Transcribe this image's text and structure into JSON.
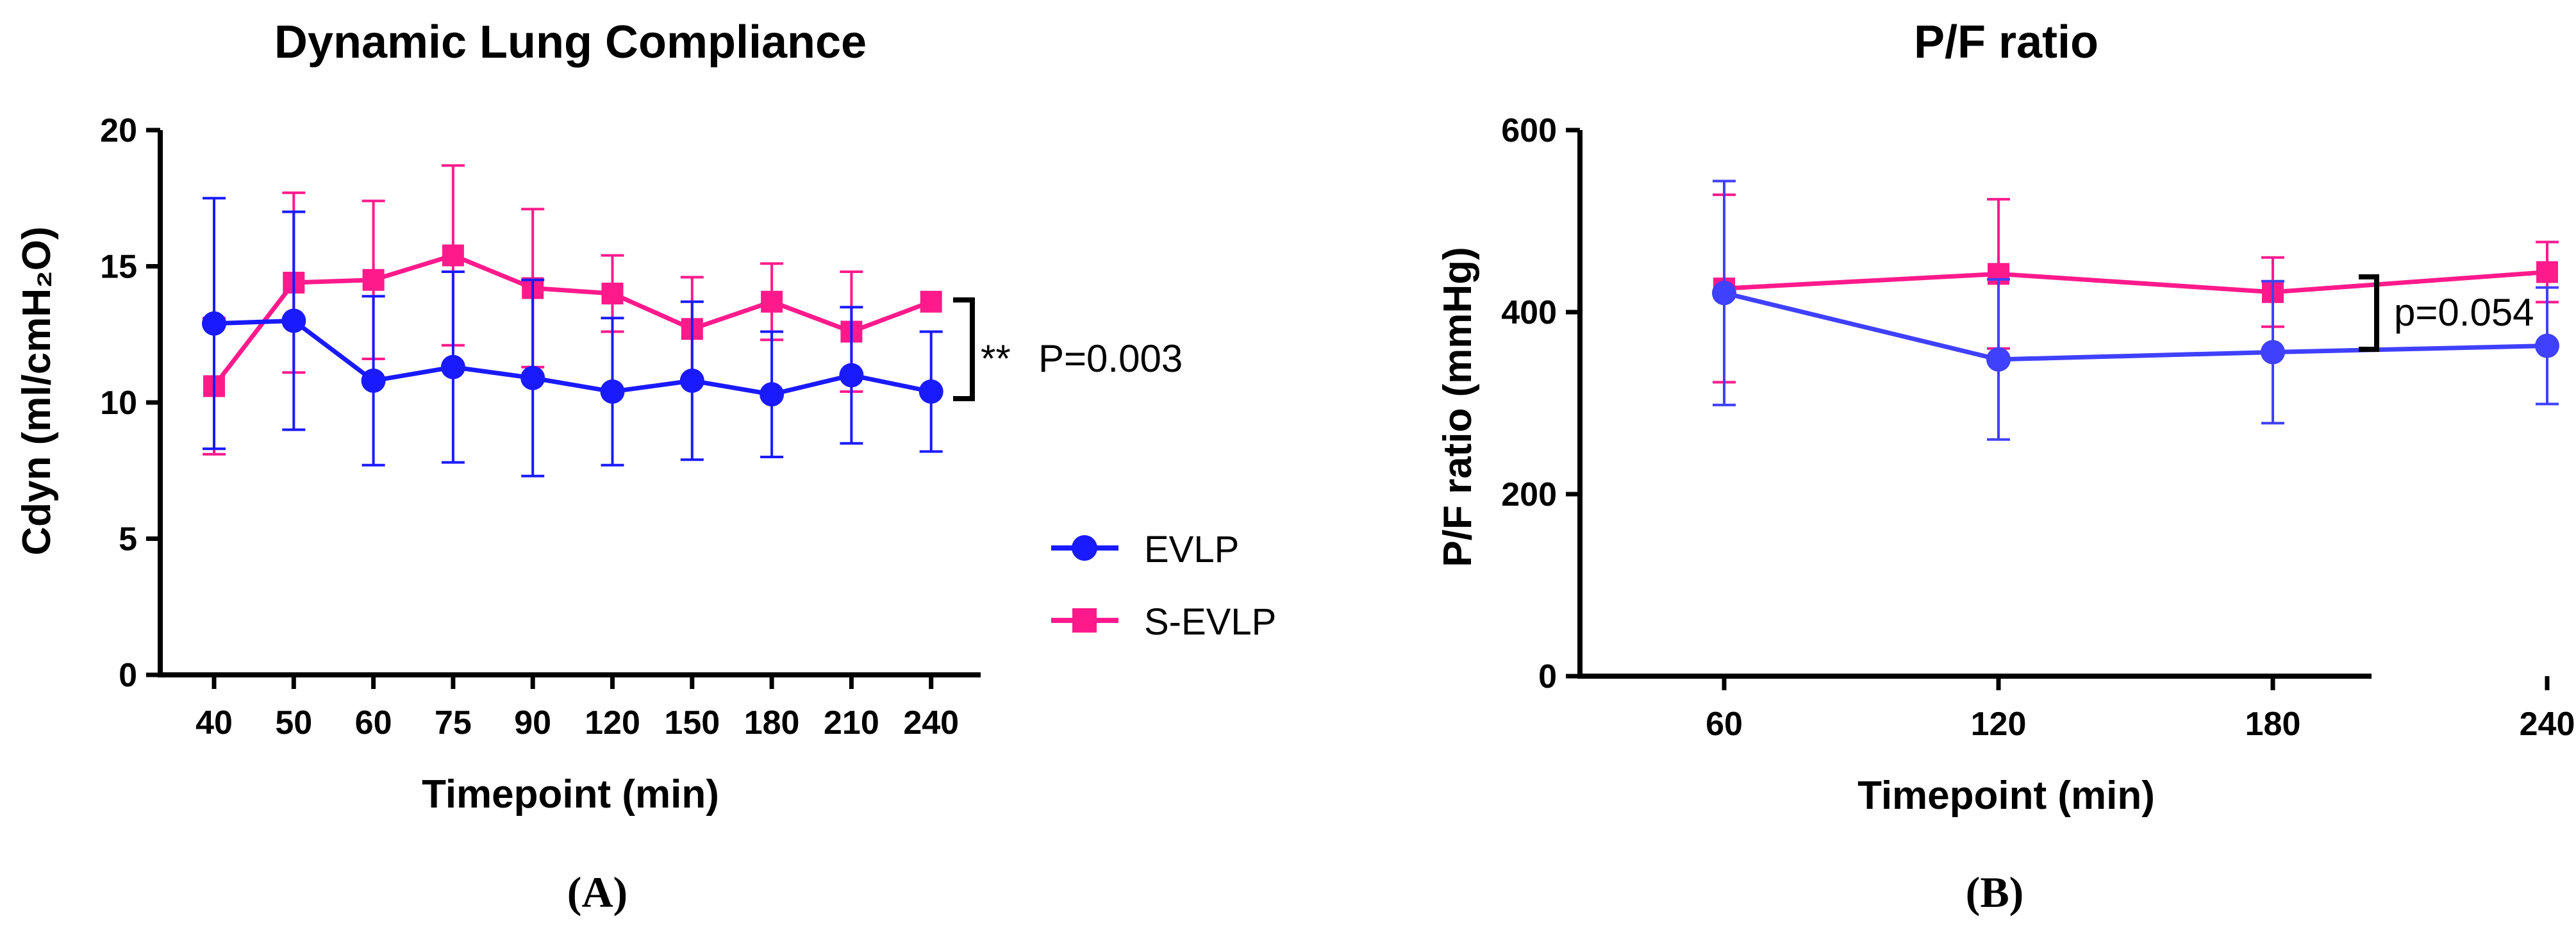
{
  "chart_data": [
    {
      "panel_label": "A",
      "type": "line",
      "title": "Dynamic Lung Compliance",
      "xlabel": "Timepoint (min)",
      "ylabel": "Cdyn (ml/cmH₂O)",
      "categories": [
        "40",
        "50",
        "60",
        "75",
        "90",
        "120",
        "150",
        "180",
        "210",
        "240"
      ],
      "ylim": [
        0,
        20
      ],
      "yticks": [
        0,
        5,
        10,
        15,
        20
      ],
      "series": [
        {
          "name": "EVLP",
          "marker": "circle",
          "color": "#1a1aff",
          "values": [
            12.9,
            13.0,
            10.8,
            11.3,
            10.9,
            10.4,
            10.8,
            10.3,
            11.0,
            10.4
          ],
          "errors": [
            4.6,
            4.0,
            3.1,
            3.5,
            3.6,
            2.7,
            2.9,
            2.3,
            2.5,
            2.2
          ]
        },
        {
          "name": "S-EVLP",
          "marker": "square",
          "color": "#ff1a8c",
          "values": [
            10.6,
            14.4,
            14.5,
            15.4,
            14.2,
            14.0,
            12.7,
            13.7,
            12.6,
            13.7
          ],
          "errors": [
            2.5,
            3.3,
            2.9,
            3.3,
            2.9,
            1.4,
            1.9,
            1.4,
            2.2,
            0.0
          ]
        }
      ],
      "annotation": {
        "stars": "**",
        "text": "P=0.003"
      },
      "legend": "right"
    },
    {
      "panel_label": "B",
      "type": "line",
      "title": "P/F ratio",
      "xlabel": "Timepoint (min)",
      "ylabel": "P/F ratio (mmHg)",
      "categories": [
        "60",
        "120",
        "180",
        "240"
      ],
      "ylim": [
        0,
        600
      ],
      "yticks": [
        0,
        200,
        400,
        600
      ],
      "series": [
        {
          "name": "EVLP",
          "marker": "circle",
          "color": "#4040ff",
          "values": [
            421,
            348,
            356,
            363
          ],
          "errors": [
            123,
            88,
            78,
            64
          ]
        },
        {
          "name": "S-EVLP",
          "marker": "square",
          "color": "#ff1a8c",
          "values": [
            426,
            442,
            422,
            444
          ],
          "errors": [
            103,
            82,
            38,
            33
          ]
        }
      ],
      "annotation": {
        "stars": "",
        "text": "p=0.054"
      }
    }
  ]
}
